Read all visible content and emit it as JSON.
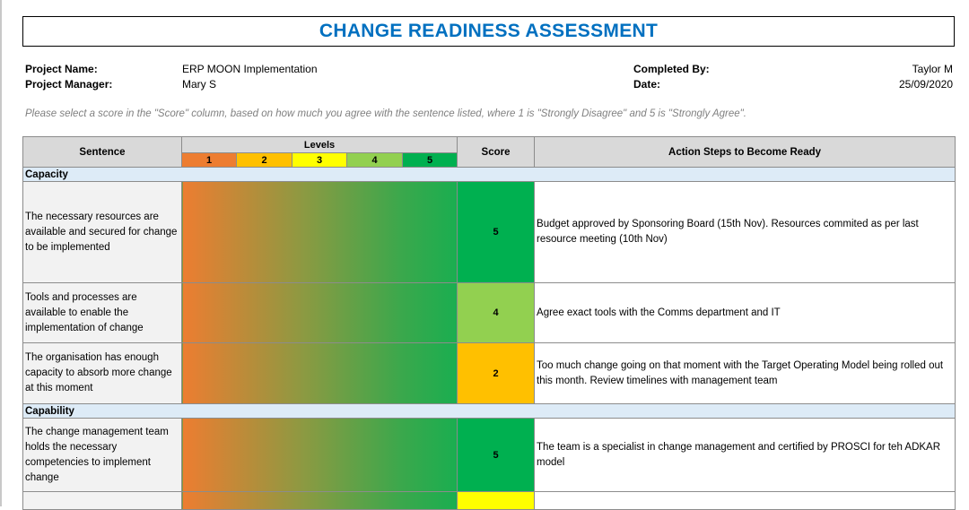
{
  "title": "CHANGE READINESS ASSESSMENT",
  "info": {
    "project_name_label": "Project Name:",
    "project_name": "ERP MOON Implementation",
    "project_manager_label": "Project Manager:",
    "project_manager": "Mary S",
    "completed_by_label": "Completed By:",
    "completed_by": "Taylor M",
    "date_label": "Date:",
    "date": "25/09/2020"
  },
  "instructions": "Please select a score in the \"Score\" column, based on how much you agree with the sentence listed, where 1 is \"Strongly Disagree\" and 5 is \"Strongly Agree\".",
  "headers": {
    "sentence": "Sentence",
    "levels": "Levels",
    "score": "Score",
    "action": "Action Steps to Become Ready",
    "level_labels": [
      "1",
      "2",
      "3",
      "4",
      "5"
    ]
  },
  "level_colors": [
    "#ed7d31",
    "#ffc000",
    "#ffff00",
    "#92d050",
    "#00b050"
  ],
  "sections": [
    {
      "name": "Capacity",
      "rows": [
        {
          "sentence": "The necessary resources are available and secured for change to be implemented",
          "score": "5",
          "color": "#00b050",
          "action": "Budget approved by Sponsoring Board (15th Nov). Resources commited as per last resource meeting (10th Nov)"
        },
        {
          "sentence": "Tools and processes are available to enable the implementation of change",
          "score": "4",
          "color": "#92d050",
          "action": "Agree exact tools with the Comms department and IT"
        },
        {
          "sentence": "The organisation has enough capacity to absorb more change at this moment",
          "score": "2",
          "color": "#ffc000",
          "action": "Too much change going on that moment with the Target Operating Model being rolled out this month. Review timelines with management team"
        }
      ]
    },
    {
      "name": "Capability",
      "rows": [
        {
          "sentence": "The change management team holds the necessary competencies to implement change",
          "score": "5",
          "color": "#00b050",
          "action": "The team is a specialist in change management and certified by PROSCI for teh ADKAR model"
        },
        {
          "sentence": "",
          "score": "",
          "color": "#ffff00",
          "action": ""
        }
      ]
    }
  ]
}
